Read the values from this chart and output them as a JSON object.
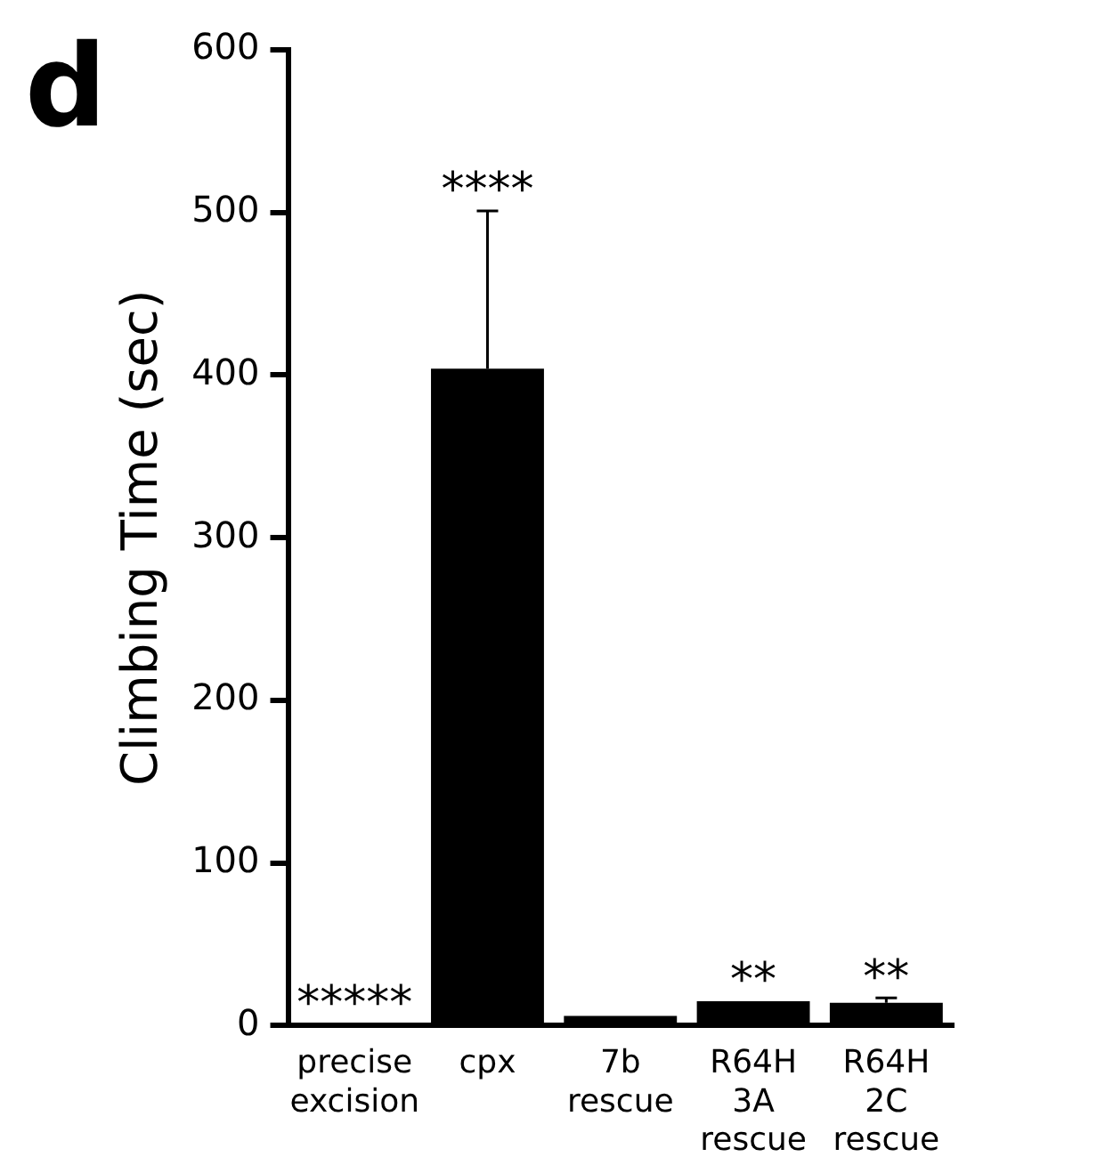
{
  "chart_data": {
    "type": "bar",
    "ylabel": "Climbing Time (sec)",
    "categories": [
      "precise\nexcision",
      "cpx",
      "7b\nrescue",
      "R64H\n3A\nrescue",
      "R64H\n2C\nrescue"
    ],
    "values": [
      1,
      404,
      6,
      15,
      14
    ],
    "color": "#000000",
    "errors": [
      null,
      [
        404,
        501
      ],
      null,
      null,
      [
        14,
        17
      ]
    ],
    "ylim": [
      0,
      600
    ],
    "yticks": [
      0,
      100,
      200,
      300,
      400,
      500,
      600
    ],
    "grid": false,
    "legend": false,
    "annotations": [
      "d",
      {
        "text": "*****",
        "x": "precise\nexcision",
        "y": 1
      },
      {
        "text": "****",
        "x": "cpx",
        "y": 501
      },
      {
        "text": "**",
        "x": "R64H\n3A\nrescue",
        "y": 15
      },
      {
        "text": "**",
        "x": "R64H\n2C\nrescue",
        "y": 17
      }
    ]
  }
}
